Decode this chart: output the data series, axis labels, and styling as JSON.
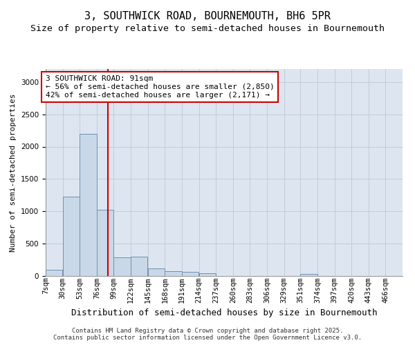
{
  "title": "3, SOUTHWICK ROAD, BOURNEMOUTH, BH6 5PR",
  "subtitle": "Size of property relative to semi-detached houses in Bournemouth",
  "xlabel": "Distribution of semi-detached houses by size in Bournemouth",
  "ylabel": "Number of semi-detached properties",
  "property_label": "3 SOUTHWICK ROAD: 91sqm",
  "smaller_pct": 56,
  "smaller_count": 2850,
  "larger_pct": 42,
  "larger_count": 2171,
  "bin_labels": [
    "7sqm",
    "30sqm",
    "53sqm",
    "76sqm",
    "99sqm",
    "122sqm",
    "145sqm",
    "168sqm",
    "191sqm",
    "214sqm",
    "237sqm",
    "260sqm",
    "283sqm",
    "306sqm",
    "329sqm",
    "351sqm",
    "374sqm",
    "397sqm",
    "420sqm",
    "443sqm",
    "466sqm"
  ],
  "bin_edges": [
    7,
    30,
    53,
    76,
    99,
    122,
    145,
    168,
    191,
    214,
    237,
    260,
    283,
    306,
    329,
    351,
    374,
    397,
    420,
    443,
    466
  ],
  "bar_values": [
    100,
    1230,
    2200,
    1020,
    290,
    295,
    115,
    75,
    65,
    45,
    0,
    0,
    0,
    0,
    0,
    30,
    0,
    0,
    0,
    0
  ],
  "bar_color": "#c8d8e8",
  "bar_edge_color": "#7090b0",
  "vline_color": "#cc0000",
  "vline_x": 91,
  "ylim": [
    0,
    3200
  ],
  "yticks": [
    0,
    500,
    1000,
    1500,
    2000,
    2500,
    3000
  ],
  "grid_color": "#c0c8d0",
  "bg_color": "#dde6f0",
  "annotation_box_color": "#cc0000",
  "footer_text": "Contains HM Land Registry data © Crown copyright and database right 2025.\nContains public sector information licensed under the Open Government Licence v3.0.",
  "title_fontsize": 11,
  "subtitle_fontsize": 9.5,
  "xlabel_fontsize": 9,
  "ylabel_fontsize": 8,
  "tick_fontsize": 7.5,
  "annotation_fontsize": 8,
  "footer_fontsize": 6.5
}
